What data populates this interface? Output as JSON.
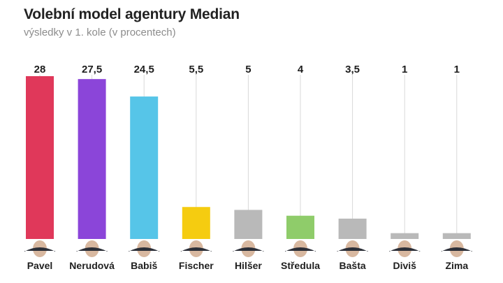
{
  "header": {
    "title": "Volební model agentury Median",
    "subtitle": "výsledky v 1. kole (v procentech)"
  },
  "chart_data": {
    "type": "bar",
    "title": "Volební model agentury Median",
    "subtitle": "výsledky v 1. kole (v procentech)",
    "categories": [
      "Pavel",
      "Nerudová",
      "Babiš",
      "Fischer",
      "Hilšer",
      "Středula",
      "Bašta",
      "Diviš",
      "Zima"
    ],
    "values": [
      28,
      27.5,
      24.5,
      5.5,
      5,
      4,
      3.5,
      1,
      1
    ],
    "value_labels": [
      "28",
      "27,5",
      "24,5",
      "5,5",
      "5",
      "4",
      "3,5",
      "1",
      "1"
    ],
    "colors": [
      "#e0385a",
      "#8b45d9",
      "#56c5e8",
      "#f5cc10",
      "#b9b9b9",
      "#8fcc6a",
      "#b9b9b9",
      "#b9b9b9",
      "#b9b9b9"
    ],
    "ylim": [
      0,
      28
    ],
    "xlabel": "",
    "ylabel": "",
    "grid": true,
    "legend": "none"
  }
}
